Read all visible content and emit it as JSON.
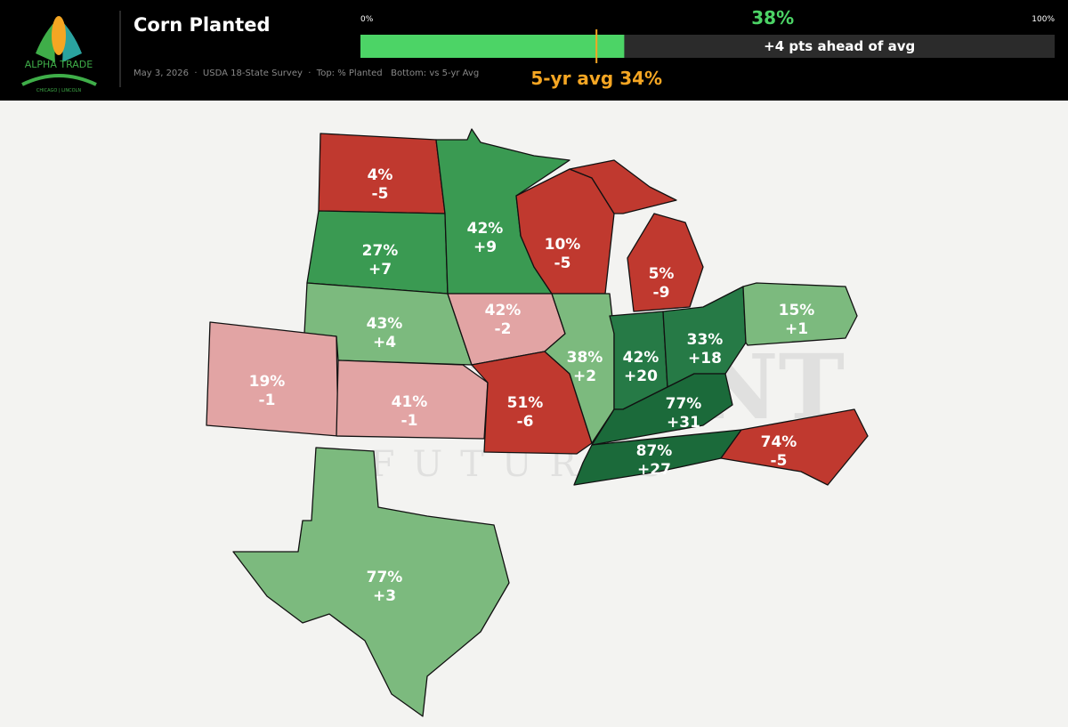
{
  "header": {
    "logo_title": "ALPHA TRADE",
    "logo_subtitle": "CHICAGO | LINCOLN",
    "title": "Corn Planted",
    "subtitle": "May 3, 2026  ·  USDA 18-State Survey  ·  Top: % Planted   Bottom: vs 5-yr Avg"
  },
  "progress": {
    "lim": [
      0,
      100
    ],
    "ticks": [
      {
        "value": 0,
        "label": "0%"
      },
      {
        "value": 100,
        "label": "100%"
      }
    ],
    "value": 38,
    "value_label": "38%",
    "avg": 34,
    "avg_label": "5-yr avg 34%",
    "note": "+4 pts ahead of avg",
    "fill_color": "#4cd466",
    "avg_color": "#f5a623"
  },
  "watermark": {
    "top": "LAKEFRONT",
    "bottom": "FUTURES"
  },
  "states": [
    {
      "planted": "4%",
      "vs_avg": "-5",
      "color": "#c0392f"
    },
    {
      "planted": "27%",
      "vs_avg": "+7",
      "color": "#3a9a52"
    },
    {
      "planted": "42%",
      "vs_avg": "+9",
      "color": "#3a9a52"
    },
    {
      "planted": "43%",
      "vs_avg": "+4",
      "color": "#7cba7e"
    },
    {
      "planted": "19%",
      "vs_avg": "-1",
      "color": "#e2a4a4"
    },
    {
      "planted": "41%",
      "vs_avg": "-1",
      "color": "#e2a4a4"
    },
    {
      "planted": "42%",
      "vs_avg": "-2",
      "color": "#e2a4a4"
    },
    {
      "planted": "51%",
      "vs_avg": "-6",
      "color": "#c0392f"
    },
    {
      "planted": "10%",
      "vs_avg": "-5",
      "color": "#c0392f"
    },
    {
      "planted": "5%",
      "vs_avg": "-9",
      "color": "#c0392f"
    },
    {
      "planted": "38%",
      "vs_avg": "+2",
      "color": "#7cba7e"
    },
    {
      "planted": "42%",
      "vs_avg": "+20",
      "color": "#267a46"
    },
    {
      "planted": "33%",
      "vs_avg": "+18",
      "color": "#267a46"
    },
    {
      "planted": "77%",
      "vs_avg": "+31",
      "color": "#1b6a3a"
    },
    {
      "planted": "87%",
      "vs_avg": "+27",
      "color": "#1b6a3a"
    },
    {
      "planted": "74%",
      "vs_avg": "-5",
      "color": "#c0392f"
    },
    {
      "planted": "15%",
      "vs_avg": "+1",
      "color": "#7cba7e"
    },
    {
      "planted": "77%",
      "vs_avg": "+3",
      "color": "#7cba7e"
    }
  ]
}
